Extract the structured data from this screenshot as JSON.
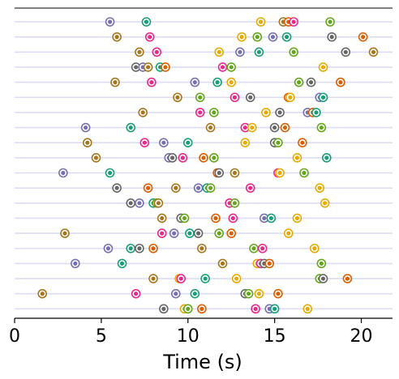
{
  "chart_data": {
    "type": "scatter",
    "xlabel": "Time (s)",
    "ylabel": "",
    "title": "",
    "xlim": [
      0,
      21.8
    ],
    "xticks": [
      "0",
      "5",
      "10",
      "15",
      "20"
    ],
    "grid": "horizontal row lines",
    "legend": "none",
    "colors": {
      "teal": "#1b9e77",
      "orange": "#d95f02",
      "purple": "#7570b3",
      "magenta": "#e7298a",
      "green": "#66a61e",
      "gold": "#e6ab02",
      "brown": "#a6761d",
      "gray": "#666666"
    },
    "rows": [
      {
        "points": [
          {
            "x": 5.5,
            "c": "purple"
          },
          {
            "x": 7.6,
            "c": "teal"
          },
          {
            "x": 14.2,
            "c": "gold"
          },
          {
            "x": 15.5,
            "c": "brown"
          },
          {
            "x": 15.8,
            "c": "orange"
          },
          {
            "x": 16.1,
            "c": "magenta"
          },
          {
            "x": 18.2,
            "c": "green"
          }
        ]
      },
      {
        "points": [
          {
            "x": 5.9,
            "c": "brown"
          },
          {
            "x": 7.8,
            "c": "magenta"
          },
          {
            "x": 13.1,
            "c": "gold"
          },
          {
            "x": 14.0,
            "c": "green"
          },
          {
            "x": 14.9,
            "c": "purple"
          },
          {
            "x": 15.7,
            "c": "teal"
          },
          {
            "x": 18.3,
            "c": "gray"
          },
          {
            "x": 20.1,
            "c": "orange"
          }
        ]
      },
      {
        "points": [
          {
            "x": 7.2,
            "c": "brown"
          },
          {
            "x": 8.2,
            "c": "magenta"
          },
          {
            "x": 11.8,
            "c": "gold"
          },
          {
            "x": 13.0,
            "c": "purple"
          },
          {
            "x": 14.1,
            "c": "teal"
          },
          {
            "x": 16.1,
            "c": "green"
          },
          {
            "x": 19.1,
            "c": "gray"
          },
          {
            "x": 20.7,
            "c": "brown"
          }
        ]
      },
      {
        "points": [
          {
            "x": 7.0,
            "c": "gray"
          },
          {
            "x": 7.4,
            "c": "purple"
          },
          {
            "x": 7.7,
            "c": "brown"
          },
          {
            "x": 8.4,
            "c": "teal"
          },
          {
            "x": 8.7,
            "c": "orange"
          },
          {
            "x": 12.0,
            "c": "magenta"
          },
          {
            "x": 12.5,
            "c": "green"
          },
          {
            "x": 17.8,
            "c": "gold"
          }
        ]
      },
      {
        "points": [
          {
            "x": 5.8,
            "c": "brown"
          },
          {
            "x": 7.9,
            "c": "magenta"
          },
          {
            "x": 10.4,
            "c": "purple"
          },
          {
            "x": 11.7,
            "c": "teal"
          },
          {
            "x": 12.5,
            "c": "gold"
          },
          {
            "x": 16.4,
            "c": "green"
          },
          {
            "x": 17.1,
            "c": "gray"
          },
          {
            "x": 18.8,
            "c": "orange"
          }
        ]
      },
      {
        "points": [
          {
            "x": 9.4,
            "c": "brown"
          },
          {
            "x": 10.7,
            "c": "green"
          },
          {
            "x": 12.7,
            "c": "magenta"
          },
          {
            "x": 13.6,
            "c": "gray"
          },
          {
            "x": 15.8,
            "c": "orange"
          },
          {
            "x": 15.9,
            "c": "gold"
          },
          {
            "x": 17.6,
            "c": "purple"
          },
          {
            "x": 17.8,
            "c": "teal"
          }
        ]
      },
      {
        "points": [
          {
            "x": 7.4,
            "c": "brown"
          },
          {
            "x": 10.7,
            "c": "magenta"
          },
          {
            "x": 11.5,
            "c": "green"
          },
          {
            "x": 14.5,
            "c": "gold"
          },
          {
            "x": 15.3,
            "c": "gray"
          },
          {
            "x": 16.9,
            "c": "purple"
          },
          {
            "x": 17.2,
            "c": "orange"
          },
          {
            "x": 17.4,
            "c": "teal"
          }
        ]
      },
      {
        "points": [
          {
            "x": 4.1,
            "c": "purple"
          },
          {
            "x": 6.7,
            "c": "teal"
          },
          {
            "x": 11.3,
            "c": "brown"
          },
          {
            "x": 13.3,
            "c": "magenta"
          },
          {
            "x": 13.7,
            "c": "gold"
          },
          {
            "x": 15.0,
            "c": "gray"
          },
          {
            "x": 15.6,
            "c": "orange"
          },
          {
            "x": 17.7,
            "c": "green"
          }
        ]
      },
      {
        "points": [
          {
            "x": 4.2,
            "c": "brown"
          },
          {
            "x": 7.5,
            "c": "magenta"
          },
          {
            "x": 8.6,
            "c": "purple"
          },
          {
            "x": 10.0,
            "c": "teal"
          },
          {
            "x": 13.3,
            "c": "gold"
          },
          {
            "x": 15.0,
            "c": "gray"
          },
          {
            "x": 15.2,
            "c": "green"
          },
          {
            "x": 16.6,
            "c": "orange"
          }
        ]
      },
      {
        "points": [
          {
            "x": 4.7,
            "c": "brown"
          },
          {
            "x": 8.9,
            "c": "purple"
          },
          {
            "x": 9.1,
            "c": "gray"
          },
          {
            "x": 9.7,
            "c": "magenta"
          },
          {
            "x": 10.9,
            "c": "orange"
          },
          {
            "x": 11.5,
            "c": "green"
          },
          {
            "x": 16.3,
            "c": "gold"
          },
          {
            "x": 18.0,
            "c": "teal"
          }
        ]
      },
      {
        "points": [
          {
            "x": 2.8,
            "c": "purple"
          },
          {
            "x": 5.5,
            "c": "teal"
          },
          {
            "x": 11.7,
            "c": "orange"
          },
          {
            "x": 11.8,
            "c": "gray"
          },
          {
            "x": 12.7,
            "c": "brown"
          },
          {
            "x": 15.2,
            "c": "magenta"
          },
          {
            "x": 15.3,
            "c": "gold"
          },
          {
            "x": 16.7,
            "c": "green"
          }
        ]
      },
      {
        "points": [
          {
            "x": 5.9,
            "c": "gray"
          },
          {
            "x": 7.7,
            "c": "orange"
          },
          {
            "x": 9.3,
            "c": "brown"
          },
          {
            "x": 10.6,
            "c": "purple"
          },
          {
            "x": 11.1,
            "c": "teal"
          },
          {
            "x": 11.3,
            "c": "green"
          },
          {
            "x": 13.6,
            "c": "magenta"
          },
          {
            "x": 17.6,
            "c": "gold"
          }
        ]
      },
      {
        "points": [
          {
            "x": 6.7,
            "c": "gray"
          },
          {
            "x": 7.2,
            "c": "purple"
          },
          {
            "x": 8.0,
            "c": "teal"
          },
          {
            "x": 8.2,
            "c": "green"
          },
          {
            "x": 8.3,
            "c": "brown"
          },
          {
            "x": 12.4,
            "c": "magenta"
          },
          {
            "x": 12.7,
            "c": "green"
          },
          {
            "x": 17.9,
            "c": "gold"
          }
        ]
      },
      {
        "points": [
          {
            "x": 8.5,
            "c": "brown"
          },
          {
            "x": 9.6,
            "c": "gray"
          },
          {
            "x": 9.8,
            "c": "green"
          },
          {
            "x": 11.6,
            "c": "orange"
          },
          {
            "x": 12.6,
            "c": "magenta"
          },
          {
            "x": 14.4,
            "c": "purple"
          },
          {
            "x": 14.8,
            "c": "teal"
          },
          {
            "x": 16.3,
            "c": "gold"
          }
        ]
      },
      {
        "points": [
          {
            "x": 2.9,
            "c": "brown"
          },
          {
            "x": 8.5,
            "c": "magenta"
          },
          {
            "x": 9.2,
            "c": "purple"
          },
          {
            "x": 10.1,
            "c": "teal"
          },
          {
            "x": 10.6,
            "c": "gray"
          },
          {
            "x": 11.8,
            "c": "green"
          },
          {
            "x": 12.5,
            "c": "orange"
          },
          {
            "x": 15.8,
            "c": "gold"
          }
        ]
      },
      {
        "points": [
          {
            "x": 5.4,
            "c": "purple"
          },
          {
            "x": 6.7,
            "c": "teal"
          },
          {
            "x": 7.2,
            "c": "gray"
          },
          {
            "x": 8.0,
            "c": "orange"
          },
          {
            "x": 10.8,
            "c": "brown"
          },
          {
            "x": 13.8,
            "c": "green"
          },
          {
            "x": 14.3,
            "c": "magenta"
          },
          {
            "x": 17.3,
            "c": "gold"
          }
        ]
      },
      {
        "points": [
          {
            "x": 3.5,
            "c": "purple"
          },
          {
            "x": 6.2,
            "c": "teal"
          },
          {
            "x": 12.0,
            "c": "brown"
          },
          {
            "x": 14.0,
            "c": "gold"
          },
          {
            "x": 14.2,
            "c": "magenta"
          },
          {
            "x": 14.4,
            "c": "gray"
          },
          {
            "x": 14.7,
            "c": "orange"
          },
          {
            "x": 17.7,
            "c": "green"
          }
        ]
      },
      {
        "points": [
          {
            "x": 8.0,
            "c": "brown"
          },
          {
            "x": 9.5,
            "c": "gold"
          },
          {
            "x": 9.6,
            "c": "magenta"
          },
          {
            "x": 11.0,
            "c": "teal"
          },
          {
            "x": 12.8,
            "c": "gold"
          },
          {
            "x": 17.6,
            "c": "green"
          },
          {
            "x": 17.8,
            "c": "gray"
          },
          {
            "x": 19.2,
            "c": "orange"
          }
        ]
      },
      {
        "points": [
          {
            "x": 1.6,
            "c": "brown"
          },
          {
            "x": 7.0,
            "c": "magenta"
          },
          {
            "x": 9.3,
            "c": "purple"
          },
          {
            "x": 10.4,
            "c": "teal"
          },
          {
            "x": 13.3,
            "c": "gray"
          },
          {
            "x": 13.5,
            "c": "green"
          },
          {
            "x": 14.1,
            "c": "gold"
          },
          {
            "x": 15.2,
            "c": "orange"
          }
        ]
      },
      {
        "points": [
          {
            "x": 8.6,
            "c": "gray"
          },
          {
            "x": 9.8,
            "c": "gold"
          },
          {
            "x": 10.0,
            "c": "green"
          },
          {
            "x": 10.8,
            "c": "orange"
          },
          {
            "x": 13.9,
            "c": "magenta"
          },
          {
            "x": 14.7,
            "c": "purple"
          },
          {
            "x": 15.0,
            "c": "teal"
          },
          {
            "x": 16.9,
            "c": "gold"
          }
        ]
      }
    ]
  }
}
